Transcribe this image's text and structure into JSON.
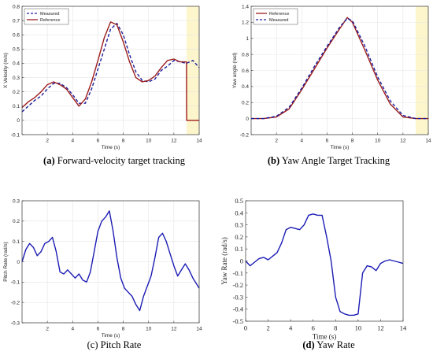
{
  "chart_data": [
    {
      "id": "a",
      "type": "line",
      "title": "",
      "xlabel": "Time (s)",
      "ylabel": "X Velocity (m/s)",
      "xlim": [
        0,
        14
      ],
      "ylim": [
        -0.1,
        0.8
      ],
      "xticks": [
        "2",
        "4",
        "6",
        "8",
        "10",
        "12",
        "14"
      ],
      "yticks": [
        "-0.1",
        "0",
        "0.1",
        "0.2",
        "0.3",
        "0.4",
        "0.5",
        "0.6",
        "0.7",
        "0.8"
      ],
      "highlight": {
        "x_from": 13,
        "x_to": 14,
        "color": "#fdf6cc"
      },
      "legend": {
        "position": "top-left",
        "entries": [
          "Measured",
          "Reference"
        ]
      },
      "series": [
        {
          "name": "Measured",
          "color": "#1c1c9c",
          "style": "dashed",
          "x": [
            0,
            0.5,
            1,
            1.5,
            2,
            2.5,
            3,
            3.5,
            4,
            4.5,
            5,
            5.5,
            6,
            6.5,
            7,
            7.5,
            8,
            8.5,
            9,
            9.5,
            10,
            10.5,
            11,
            11.5,
            12,
            12.5,
            13,
            13.5,
            14
          ],
          "y": [
            0.06,
            0.1,
            0.14,
            0.17,
            0.22,
            0.26,
            0.26,
            0.23,
            0.18,
            0.12,
            0.12,
            0.22,
            0.36,
            0.5,
            0.64,
            0.68,
            0.6,
            0.46,
            0.34,
            0.28,
            0.27,
            0.29,
            0.35,
            0.38,
            0.42,
            0.41,
            0.4,
            0.42,
            0.37
          ]
        },
        {
          "name": "Reference",
          "color": "#9c1c1c",
          "style": "solid",
          "x": [
            0,
            0.5,
            1,
            1.5,
            2,
            2.5,
            3,
            3.5,
            4,
            4.5,
            5,
            5.5,
            6,
            6.5,
            7,
            7.5,
            8,
            8.5,
            9,
            9.5,
            10,
            10.5,
            11,
            11.5,
            12,
            12.5,
            13,
            13.01,
            13.5,
            14
          ],
          "y": [
            0.09,
            0.13,
            0.16,
            0.2,
            0.25,
            0.27,
            0.25,
            0.22,
            0.16,
            0.1,
            0.15,
            0.27,
            0.42,
            0.58,
            0.69,
            0.67,
            0.55,
            0.41,
            0.3,
            0.27,
            0.28,
            0.31,
            0.37,
            0.42,
            0.43,
            0.41,
            0.41,
            0.0,
            0.0,
            0.0
          ]
        }
      ]
    },
    {
      "id": "b",
      "type": "line",
      "title": "",
      "xlabel": "Time (s)",
      "ylabel": "Yaw angle (rad)",
      "xlim": [
        0,
        14
      ],
      "ylim": [
        -0.2,
        1.4
      ],
      "xticks": [
        "2",
        "4",
        "6",
        "8",
        "10",
        "12",
        "14"
      ],
      "yticks": [
        "-0.2",
        "0",
        "0.2",
        "0.4",
        "0.6",
        "0.8",
        "1",
        "1.2",
        "1.4"
      ],
      "highlight": {
        "x_from": 13,
        "x_to": 14,
        "color": "#fdf6cc"
      },
      "legend": {
        "position": "top-left",
        "entries": [
          "Reference",
          "Measured"
        ]
      },
      "series": [
        {
          "name": "Reference",
          "color": "#9c1c1c",
          "style": "solid",
          "x": [
            0,
            1,
            2,
            3,
            4,
            5,
            6,
            7,
            7.6,
            8,
            9,
            10,
            11,
            12,
            13,
            14
          ],
          "y": [
            0.0,
            0.0,
            0.02,
            0.12,
            0.36,
            0.62,
            0.88,
            1.12,
            1.26,
            1.2,
            0.85,
            0.48,
            0.18,
            0.02,
            0.0,
            0.0
          ]
        },
        {
          "name": "Measured",
          "color": "#1c1c9c",
          "style": "dashed",
          "x": [
            0,
            1,
            2,
            3,
            4,
            5,
            6,
            7,
            7.6,
            8,
            9,
            10,
            11,
            12,
            13,
            14
          ],
          "y": [
            0.0,
            0.0,
            0.03,
            0.14,
            0.38,
            0.65,
            0.9,
            1.14,
            1.25,
            1.22,
            0.9,
            0.52,
            0.22,
            0.04,
            0.0,
            0.0
          ]
        }
      ]
    },
    {
      "id": "c",
      "type": "line",
      "title": "",
      "xlabel": "Time (s)",
      "ylabel": "Pitch Rate (rad/s)",
      "xlim": [
        0,
        14
      ],
      "ylim": [
        -0.3,
        0.3
      ],
      "xticks": [
        "2",
        "4",
        "6",
        "8",
        "10",
        "12",
        "14"
      ],
      "yticks": [
        "-0.3",
        "-0.2",
        "-0.1",
        "0",
        "0.1",
        "0.2",
        "0.3"
      ],
      "series": [
        {
          "name": "",
          "color": "#1c1cb4",
          "style": "solid",
          "x": [
            0,
            0.3,
            0.6,
            0.9,
            1.2,
            1.5,
            1.8,
            2.1,
            2.4,
            2.7,
            3,
            3.3,
            3.6,
            3.9,
            4.2,
            4.5,
            4.8,
            5.1,
            5.4,
            5.7,
            6,
            6.3,
            6.6,
            6.9,
            7.2,
            7.5,
            7.8,
            8.1,
            8.4,
            8.7,
            9,
            9.3,
            9.6,
            9.9,
            10.2,
            10.5,
            10.8,
            11.1,
            11.4,
            11.7,
            12,
            12.3,
            12.6,
            12.9,
            13.2,
            13.5,
            13.8,
            14
          ],
          "y": [
            0.0,
            0.06,
            0.09,
            0.07,
            0.03,
            0.05,
            0.09,
            0.1,
            0.12,
            0.05,
            -0.05,
            -0.06,
            -0.04,
            -0.06,
            -0.08,
            -0.06,
            -0.09,
            -0.1,
            -0.05,
            0.05,
            0.15,
            0.2,
            0.22,
            0.25,
            0.15,
            0.02,
            -0.08,
            -0.13,
            -0.15,
            -0.17,
            -0.21,
            -0.24,
            -0.17,
            -0.12,
            -0.07,
            0.02,
            0.12,
            0.14,
            0.1,
            0.04,
            -0.02,
            -0.07,
            -0.04,
            -0.01,
            -0.04,
            -0.08,
            -0.11,
            -0.13
          ]
        }
      ]
    },
    {
      "id": "d",
      "type": "line",
      "title": "",
      "xlabel": "Time (s)",
      "ylabel": "Yaw Rate (rad/s)",
      "xlim": [
        0,
        14
      ],
      "ylim": [
        -0.5,
        0.5
      ],
      "xticks": [
        "0",
        "2",
        "4",
        "6",
        "8",
        "10",
        "12",
        "14"
      ],
      "yticks": [
        "-0.5",
        "-0.4",
        "-0.3",
        "-0.2",
        "-0.1",
        "0",
        "0.1",
        "0.2",
        "0.3",
        "0.4",
        "0.5"
      ],
      "series": [
        {
          "name": "",
          "color": "#1c1cb4",
          "style": "solid",
          "x": [
            0,
            0.4,
            0.8,
            1.2,
            1.6,
            2,
            2.4,
            2.8,
            3.2,
            3.6,
            4,
            4.4,
            4.8,
            5.2,
            5.6,
            6,
            6.4,
            6.8,
            7.2,
            7.6,
            8,
            8.4,
            8.8,
            9.2,
            9.6,
            10,
            10.4,
            10.8,
            11.2,
            11.6,
            12,
            12.4,
            12.8,
            13.2,
            13.6,
            14
          ],
          "y": [
            0.0,
            -0.04,
            -0.01,
            0.02,
            0.03,
            0.01,
            0.04,
            0.07,
            0.15,
            0.26,
            0.28,
            0.27,
            0.26,
            0.3,
            0.38,
            0.39,
            0.38,
            0.38,
            0.2,
            0.0,
            -0.3,
            -0.42,
            -0.44,
            -0.45,
            -0.45,
            -0.44,
            -0.1,
            -0.04,
            -0.05,
            -0.08,
            -0.02,
            0.0,
            0.01,
            0.0,
            -0.01,
            -0.02
          ]
        }
      ]
    }
  ],
  "captions": {
    "a": {
      "label": "(a)",
      "text": "Forward-velocity target tracking"
    },
    "b": {
      "label": "(b)",
      "text": "Yaw Angle Target Tracking"
    },
    "c": {
      "label": "(c)",
      "text": "Pitch Rate"
    },
    "d": {
      "label": "(d)",
      "text": "Yaw Rate"
    }
  }
}
